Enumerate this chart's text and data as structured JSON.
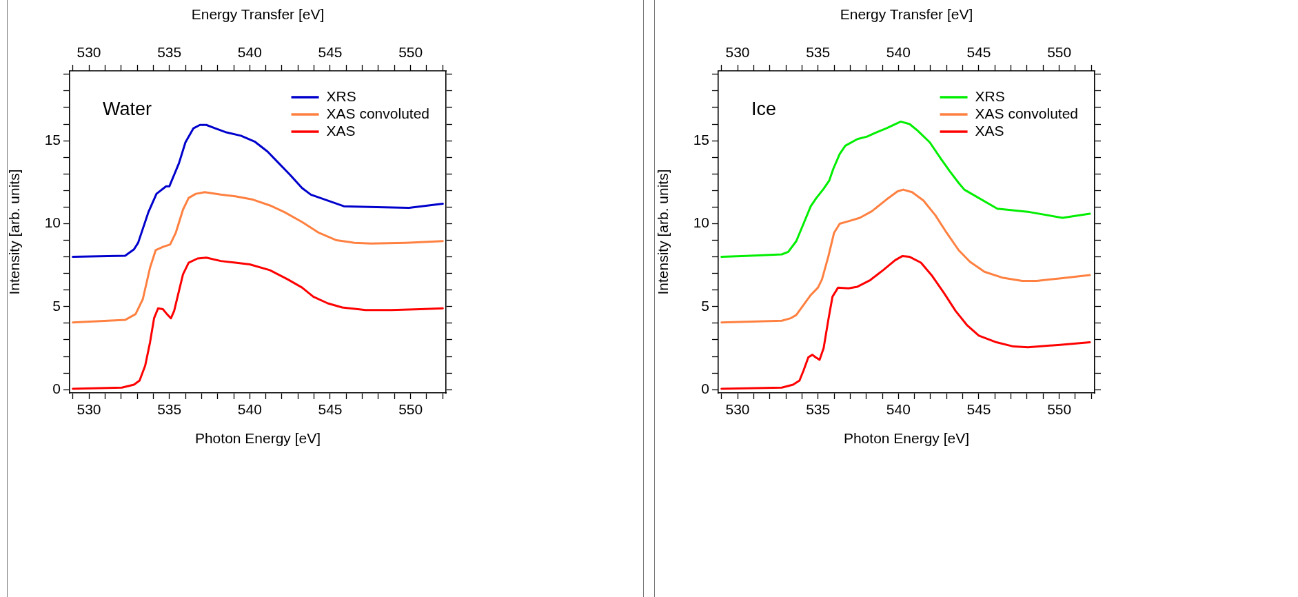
{
  "chart_data": [
    {
      "type": "line",
      "title": "Water",
      "xlabel": "Photon Energy [eV]",
      "x2label": "Energy Transfer [eV]",
      "ylabel": "Intensity [arb. units]",
      "xlim": [
        528.8,
        552.2
      ],
      "x2lim": [
        528.8,
        552.2
      ],
      "xticks": [
        {
          "value": 529,
          "label": null
        },
        530,
        {
          "value": 531,
          "label": null
        },
        {
          "value": 532,
          "label": null
        },
        {
          "value": 533,
          "label": null
        },
        {
          "value": 534,
          "label": null
        },
        535,
        {
          "value": 536,
          "label": null
        },
        {
          "value": 537,
          "label": null
        },
        {
          "value": 538,
          "label": null
        },
        {
          "value": 539,
          "label": null
        },
        540,
        {
          "value": 541,
          "label": null
        },
        {
          "value": 542,
          "label": null
        },
        {
          "value": 543,
          "label": null
        },
        {
          "value": 544,
          "label": null
        },
        545,
        {
          "value": 546,
          "label": null
        },
        {
          "value": 547,
          "label": null
        },
        {
          "value": 548,
          "label": null
        },
        {
          "value": 549,
          "label": null
        },
        550,
        {
          "value": 551,
          "label": null
        },
        {
          "value": 552,
          "label": null
        }
      ],
      "x2ticks": [
        {
          "value": 529,
          "label": null
        },
        530,
        {
          "value": 531,
          "label": null
        },
        {
          "value": 532,
          "label": null
        },
        {
          "value": 533,
          "label": null
        },
        {
          "value": 534,
          "label": null
        },
        535,
        {
          "value": 536,
          "label": null
        },
        {
          "value": 537,
          "label": null
        },
        {
          "value": 538,
          "label": null
        },
        {
          "value": 539,
          "label": null
        },
        540,
        {
          "value": 541,
          "label": null
        },
        {
          "value": 542,
          "label": null
        },
        {
          "value": 543,
          "label": null
        },
        {
          "value": 544,
          "label": null
        },
        545,
        {
          "value": 546,
          "label": null
        },
        {
          "value": 547,
          "label": null
        },
        {
          "value": 548,
          "label": null
        },
        {
          "value": 549,
          "label": null
        },
        550,
        {
          "value": 551,
          "label": null
        },
        {
          "value": 552,
          "label": null
        }
      ],
      "ylim": [
        -0.2,
        19.2
      ],
      "yticks": [
        0,
        {
          "value": 1,
          "label": null
        },
        {
          "value": 2,
          "label": null
        },
        {
          "value": 3,
          "label": null
        },
        {
          "value": 4,
          "label": null
        },
        5,
        {
          "value": 6,
          "label": null
        },
        {
          "value": 7,
          "label": null
        },
        {
          "value": 8,
          "label": null
        },
        {
          "value": 9,
          "label": null
        },
        10,
        {
          "value": 11,
          "label": null
        },
        {
          "value": 12,
          "label": null
        },
        {
          "value": 13,
          "label": null
        },
        {
          "value": 14,
          "label": null
        },
        15,
        {
          "value": 16,
          "label": null
        },
        {
          "value": 17,
          "label": null
        },
        {
          "value": 18,
          "label": null
        },
        {
          "value": 19,
          "label": null
        }
      ],
      "grid": false,
      "legend": "top right",
      "marker": "none",
      "line_style": "solid",
      "series": [
        {
          "name": "XRS",
          "color": "#0000cc",
          "x": [
            529.0,
            532.25,
            532.8,
            533.06,
            533.7,
            534.2,
            534.8,
            535.0,
            535.3,
            535.6,
            536.0,
            536.5,
            536.9,
            537.3,
            537.85,
            538.55,
            539.45,
            540.3,
            541.1,
            541.8,
            542.5,
            543.25,
            543.8,
            545.85,
            547.9,
            549.9,
            552.0
          ],
          "values": [
            8.0,
            8.07,
            8.45,
            8.85,
            10.7,
            11.8,
            12.25,
            12.25,
            12.95,
            13.65,
            14.9,
            15.75,
            15.95,
            15.95,
            15.75,
            15.5,
            15.3,
            14.95,
            14.35,
            13.65,
            12.95,
            12.15,
            11.75,
            11.05,
            11.0,
            10.95,
            11.2
          ]
        },
        {
          "name": "XAS convoluted",
          "color": "#ff8040",
          "x": [
            529.0,
            532.25,
            532.9,
            533.35,
            533.8,
            534.15,
            534.6,
            535.05,
            535.4,
            535.85,
            536.2,
            536.65,
            537.2,
            538.2,
            539.1,
            540.2,
            541.25,
            542.15,
            543.25,
            544.3,
            545.4,
            546.5,
            547.55,
            549.7,
            552.0
          ],
          "values": [
            4.05,
            4.2,
            4.55,
            5.45,
            7.35,
            8.4,
            8.6,
            8.75,
            9.45,
            10.85,
            11.55,
            11.8,
            11.9,
            11.75,
            11.65,
            11.45,
            11.1,
            10.7,
            10.1,
            9.45,
            9.0,
            8.85,
            8.8,
            8.85,
            8.95
          ]
        },
        {
          "name": "XAS",
          "color": "#ff0000",
          "x": [
            529.0,
            532.05,
            532.8,
            533.15,
            533.5,
            533.8,
            534.05,
            534.3,
            534.6,
            534.85,
            535.1,
            535.3,
            535.6,
            535.85,
            536.2,
            536.75,
            537.3,
            538.2,
            539.1,
            540.0,
            541.25,
            542.35,
            543.25,
            543.95,
            544.85,
            545.75,
            547.2,
            548.8,
            550.6,
            552.0
          ],
          "values": [
            0.05,
            0.12,
            0.3,
            0.55,
            1.45,
            2.85,
            4.3,
            4.9,
            4.85,
            4.55,
            4.3,
            4.75,
            5.95,
            6.95,
            7.65,
            7.9,
            7.95,
            7.75,
            7.65,
            7.55,
            7.2,
            6.65,
            6.15,
            5.6,
            5.2,
            4.95,
            4.8,
            4.8,
            4.85,
            4.9
          ]
        }
      ]
    },
    {
      "type": "line",
      "title": "Ice",
      "xlabel": "Photon Energy [eV]",
      "x2label": "Energy Transfer [eV]",
      "ylabel": "Intensity [arb. units]",
      "xlim": [
        528.8,
        552.2
      ],
      "x2lim": [
        528.8,
        552.2
      ],
      "xticks": [
        {
          "value": 529,
          "label": null
        },
        530,
        {
          "value": 531,
          "label": null
        },
        {
          "value": 532,
          "label": null
        },
        {
          "value": 533,
          "label": null
        },
        {
          "value": 534,
          "label": null
        },
        535,
        {
          "value": 536,
          "label": null
        },
        {
          "value": 537,
          "label": null
        },
        {
          "value": 538,
          "label": null
        },
        {
          "value": 539,
          "label": null
        },
        540,
        {
          "value": 541,
          "label": null
        },
        {
          "value": 542,
          "label": null
        },
        {
          "value": 543,
          "label": null
        },
        {
          "value": 544,
          "label": null
        },
        545,
        {
          "value": 546,
          "label": null
        },
        {
          "value": 547,
          "label": null
        },
        {
          "value": 548,
          "label": null
        },
        {
          "value": 549,
          "label": null
        },
        550,
        {
          "value": 551,
          "label": null
        },
        {
          "value": 552,
          "label": null
        }
      ],
      "x2ticks": [
        {
          "value": 529,
          "label": null
        },
        530,
        {
          "value": 531,
          "label": null
        },
        {
          "value": 532,
          "label": null
        },
        {
          "value": 533,
          "label": null
        },
        {
          "value": 534,
          "label": null
        },
        535,
        {
          "value": 536,
          "label": null
        },
        {
          "value": 537,
          "label": null
        },
        {
          "value": 538,
          "label": null
        },
        {
          "value": 539,
          "label": null
        },
        540,
        {
          "value": 541,
          "label": null
        },
        {
          "value": 542,
          "label": null
        },
        {
          "value": 543,
          "label": null
        },
        {
          "value": 544,
          "label": null
        },
        545,
        {
          "value": 546,
          "label": null
        },
        {
          "value": 547,
          "label": null
        },
        {
          "value": 548,
          "label": null
        },
        {
          "value": 549,
          "label": null
        },
        550,
        {
          "value": 551,
          "label": null
        },
        {
          "value": 552,
          "label": null
        }
      ],
      "ylim": [
        -0.2,
        19.2
      ],
      "yticks": [
        0,
        {
          "value": 1,
          "label": null
        },
        {
          "value": 2,
          "label": null
        },
        {
          "value": 3,
          "label": null
        },
        {
          "value": 4,
          "label": null
        },
        5,
        {
          "value": 6,
          "label": null
        },
        {
          "value": 7,
          "label": null
        },
        {
          "value": 8,
          "label": null
        },
        {
          "value": 9,
          "label": null
        },
        10,
        {
          "value": 11,
          "label": null
        },
        {
          "value": 12,
          "label": null
        },
        {
          "value": 13,
          "label": null
        },
        {
          "value": 14,
          "label": null
        },
        15,
        {
          "value": 16,
          "label": null
        },
        {
          "value": 17,
          "label": null
        },
        {
          "value": 18,
          "label": null
        },
        {
          "value": 19,
          "label": null
        }
      ],
      "grid": false,
      "legend": "top right",
      "marker": "none",
      "line_style": "solid",
      "series": [
        {
          "name": "XRS",
          "color": "#00ee00",
          "x": [
            529.0,
            530.25,
            532.75,
            533.15,
            533.65,
            534.1,
            534.55,
            534.9,
            535.35,
            535.7,
            535.95,
            536.35,
            536.7,
            537.45,
            538.05,
            538.5,
            539.25,
            539.8,
            540.15,
            540.7,
            541.2,
            541.95,
            542.65,
            543.2,
            543.75,
            544.1,
            546.15,
            548.15,
            550.2,
            551.9
          ],
          "values": [
            8.0,
            8.05,
            8.15,
            8.3,
            8.95,
            10.0,
            11.05,
            11.55,
            12.1,
            12.6,
            13.3,
            14.2,
            14.7,
            15.1,
            15.25,
            15.45,
            15.75,
            16.0,
            16.15,
            16.0,
            15.6,
            14.9,
            13.9,
            13.15,
            12.45,
            12.05,
            10.9,
            10.7,
            10.35,
            10.6
          ]
        },
        {
          "name": "XAS convoluted",
          "color": "#ff8040",
          "x": [
            529.0,
            532.75,
            533.3,
            533.65,
            534.1,
            534.55,
            535.0,
            535.25,
            535.65,
            536.0,
            536.35,
            536.9,
            537.6,
            538.35,
            539.25,
            539.95,
            540.3,
            540.85,
            541.55,
            542.3,
            543.0,
            543.75,
            544.45,
            545.35,
            546.45,
            547.7,
            548.6,
            550.0,
            551.9
          ],
          "values": [
            4.05,
            4.15,
            4.3,
            4.5,
            5.1,
            5.7,
            6.15,
            6.65,
            8.05,
            9.45,
            10.0,
            10.15,
            10.35,
            10.75,
            11.45,
            11.95,
            12.05,
            11.9,
            11.4,
            10.5,
            9.45,
            8.4,
            7.7,
            7.1,
            6.75,
            6.55,
            6.55,
            6.7,
            6.9
          ]
        },
        {
          "name": "XAS",
          "color": "#ff0000",
          "x": [
            529.0,
            532.75,
            533.45,
            533.85,
            534.1,
            534.4,
            534.65,
            534.85,
            535.1,
            535.35,
            535.65,
            535.9,
            536.25,
            536.9,
            537.45,
            538.25,
            539.05,
            539.8,
            540.25,
            540.7,
            541.4,
            542.1,
            542.85,
            543.55,
            544.25,
            545.0,
            546.1,
            547.15,
            548.05,
            550.05,
            551.9
          ],
          "values": [
            0.05,
            0.12,
            0.3,
            0.55,
            1.15,
            1.95,
            2.1,
            1.95,
            1.8,
            2.5,
            4.25,
            5.6,
            6.15,
            6.1,
            6.2,
            6.6,
            7.2,
            7.8,
            8.05,
            8.0,
            7.65,
            6.85,
            5.8,
            4.75,
            3.9,
            3.25,
            2.85,
            2.6,
            2.55,
            2.7,
            2.85
          ]
        }
      ]
    }
  ]
}
